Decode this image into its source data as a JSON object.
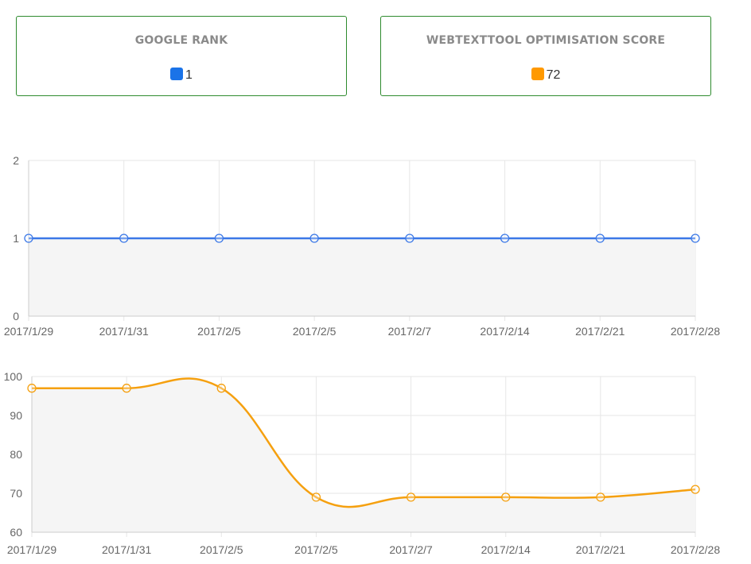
{
  "cards": {
    "rank": {
      "title": "GOOGLE RANK",
      "value": "1",
      "color": "#1a73e8",
      "icon": "square-swatch-icon"
    },
    "score": {
      "title": "WEBTEXTTOOL OPTIMISATION SCORE",
      "value": "72",
      "color": "#ff9900",
      "icon": "square-swatch-icon"
    }
  },
  "chart_data": [
    {
      "type": "line",
      "title": "",
      "xlabel": "",
      "ylabel": "",
      "categories": [
        "2017/1/29",
        "2017/1/31",
        "2017/2/5",
        "2017/2/5",
        "2017/2/7",
        "2017/2/14",
        "2017/2/21",
        "2017/2/28"
      ],
      "values": [
        1,
        1,
        1,
        1,
        1,
        1,
        1,
        1
      ],
      "ylim": [
        0,
        2
      ],
      "yticks": [
        0,
        1,
        2
      ],
      "color": "#3b78e7",
      "fill": "#f5f5f5",
      "grid": true,
      "curve": "straight"
    },
    {
      "type": "line",
      "title": "",
      "xlabel": "",
      "ylabel": "",
      "categories": [
        "2017/1/29",
        "2017/1/31",
        "2017/2/5",
        "2017/2/5",
        "2017/2/7",
        "2017/2/14",
        "2017/2/21",
        "2017/2/28"
      ],
      "values": [
        97,
        97,
        97,
        69,
        69,
        69,
        69,
        71
      ],
      "ylim": [
        60,
        100
      ],
      "yticks": [
        60,
        70,
        80,
        90,
        100
      ],
      "color": "#f5a00f",
      "fill": "#f5f5f5",
      "grid": true,
      "curve": "smooth"
    }
  ]
}
